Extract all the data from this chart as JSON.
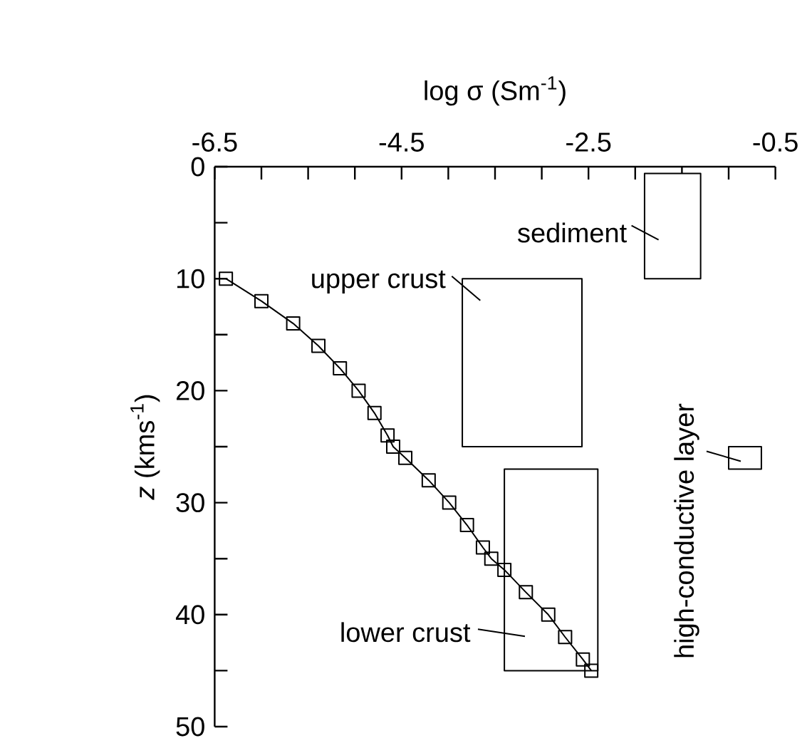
{
  "chart_data": {
    "type": "line",
    "xlabel": "log σ (Sm$^{-1}$)",
    "ylabel": "*z* (kms$^{-1}$)",
    "xlim": [
      -6.5,
      -0.5
    ],
    "ylim": [
      50,
      0
    ],
    "xticks": [
      -6.5,
      {
        "value": -6.0,
        "label": null
      },
      {
        "value": -5.5,
        "label": null
      },
      {
        "value": -5.0,
        "label": null
      },
      -4.5,
      {
        "value": -4.0,
        "label": null
      },
      {
        "value": -3.5,
        "label": null
      },
      {
        "value": -3.0,
        "label": null
      },
      -2.5,
      {
        "value": -2.0,
        "label": null
      },
      {
        "value": -1.5,
        "label": null
      },
      {
        "value": -1.0,
        "label": null
      },
      -0.5
    ],
    "yticks": [
      0,
      {
        "value": 5,
        "label": null
      },
      10,
      {
        "value": 15,
        "label": null
      },
      20,
      {
        "value": 25,
        "label": null
      },
      30,
      {
        "value": 35,
        "label": null
      },
      40,
      {
        "value": 45,
        "label": null
      },
      50
    ],
    "series": [
      {
        "color": "#000000",
        "marker": "square",
        "x": [
          -6.38,
          -6.0,
          -5.66,
          -5.39,
          -5.16,
          -4.96,
          -4.79,
          -4.65,
          -4.59,
          -4.46,
          -4.21,
          -3.99,
          -3.8,
          -3.63,
          -3.54,
          -3.4,
          -3.17,
          -2.93,
          -2.75,
          -2.56,
          -2.47
        ],
        "values": [
          10,
          12,
          14,
          16,
          18,
          20,
          22,
          24,
          25,
          26,
          28,
          30,
          32,
          34,
          35,
          36,
          38,
          40,
          42,
          44,
          45
        ]
      },
      {
        "color": "#000000",
        "x": [
          -1.9,
          -1.3
        ],
        "values": [
          null,
          null
        ],
        "lower": [
          0.6,
          0.6
        ],
        "upper": [
          10,
          10
        ]
      },
      {
        "color": "#000000",
        "x": [
          -3.85,
          -2.57
        ],
        "values": [
          null,
          null
        ],
        "lower": [
          10,
          10
        ],
        "upper": [
          25,
          25
        ]
      },
      {
        "color": "#000000",
        "x": [
          -3.4,
          -2.4
        ],
        "values": [
          null,
          null
        ],
        "lower": [
          27,
          27
        ],
        "upper": [
          45,
          45
        ]
      },
      {
        "color": "#000000",
        "x": [
          -1.0,
          -0.65
        ],
        "values": [
          null,
          null
        ],
        "lower": [
          25,
          25
        ],
        "upper": [
          27,
          27
        ]
      }
    ],
    "annotations": [
      "sediment",
      "upper crust",
      "lower crust",
      "high-conductive layer"
    ],
    "grid": false,
    "line_style": "solid"
  }
}
